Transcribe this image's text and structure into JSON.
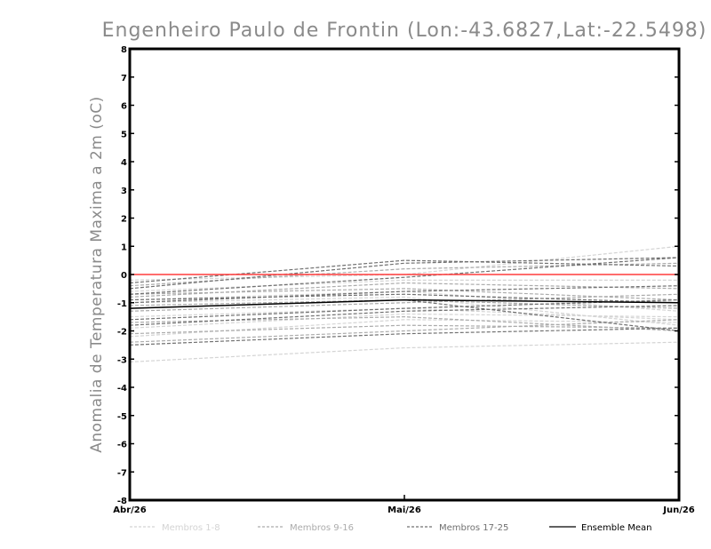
{
  "chart_data": {
    "type": "line",
    "title": "Engenheiro Paulo de Frontin (Lon:-43.6827,Lat:-22.5498)",
    "xlabel": "",
    "ylabel": "Anomalia de Temperatura Maxima a 2m (oC)",
    "categories": [
      "Abr/26",
      "Mai/26",
      "Jun/26"
    ],
    "ylim": [
      -8,
      8
    ],
    "yticks": [
      -8,
      -7,
      -6,
      -5,
      -4,
      -3,
      -2,
      -1,
      0,
      1,
      2,
      3,
      4,
      5,
      6,
      7,
      8
    ],
    "grid": false,
    "legend_position": "bottom",
    "groups": [
      {
        "label": "Membros 1-8",
        "color": "#d4d4d4",
        "dash": true
      },
      {
        "label": "Membros 9-16",
        "color": "#ababab",
        "dash": true
      },
      {
        "label": "Membros 17-25",
        "color": "#707070",
        "dash": true
      },
      {
        "label": "Ensemble Mean",
        "color": "#000000",
        "dash": false
      }
    ],
    "reference_line": {
      "value": 0,
      "color": "#ff3b3b"
    },
    "members": [
      {
        "group": 0,
        "values": [
          -3.1,
          -2.6,
          -2.4
        ]
      },
      {
        "group": 0,
        "values": [
          -2.2,
          -1.6,
          -1.7
        ]
      },
      {
        "group": 0,
        "values": [
          -1.9,
          -1.4,
          -1.5
        ]
      },
      {
        "group": 0,
        "values": [
          -0.9,
          -0.6,
          -1.3
        ]
      },
      {
        "group": 0,
        "values": [
          -0.6,
          -0.2,
          -0.2
        ]
      },
      {
        "group": 0,
        "values": [
          -1.0,
          -0.8,
          -1.8
        ]
      },
      {
        "group": 0,
        "values": [
          -0.2,
          0.0,
          1.0
        ]
      },
      {
        "group": 0,
        "values": [
          -1.5,
          -1.2,
          -1.6
        ]
      },
      {
        "group": 1,
        "values": [
          -2.4,
          -2.0,
          -1.6
        ]
      },
      {
        "group": 1,
        "values": [
          -2.1,
          -1.8,
          -1.9
        ]
      },
      {
        "group": 1,
        "values": [
          -1.7,
          -1.5,
          -2.0
        ]
      },
      {
        "group": 1,
        "values": [
          -1.1,
          -0.9,
          -1.2
        ]
      },
      {
        "group": 1,
        "values": [
          -0.7,
          -0.5,
          -0.9
        ]
      },
      {
        "group": 1,
        "values": [
          -0.4,
          0.2,
          0.4
        ]
      },
      {
        "group": 1,
        "values": [
          -1.3,
          -1.0,
          -0.7
        ]
      },
      {
        "group": 1,
        "values": [
          -0.8,
          -0.3,
          -0.5
        ]
      },
      {
        "group": 2,
        "values": [
          -2.5,
          -2.1,
          -1.9
        ]
      },
      {
        "group": 2,
        "values": [
          -1.8,
          -1.3,
          -1.1
        ]
      },
      {
        "group": 2,
        "values": [
          -1.6,
          -1.2,
          -0.9
        ]
      },
      {
        "group": 2,
        "values": [
          -1.2,
          -0.9,
          -2.0
        ]
      },
      {
        "group": 2,
        "values": [
          -0.9,
          -0.7,
          -1.0
        ]
      },
      {
        "group": 2,
        "values": [
          -0.7,
          -0.1,
          0.6
        ]
      },
      {
        "group": 2,
        "values": [
          -0.5,
          0.4,
          0.6
        ]
      },
      {
        "group": 2,
        "values": [
          -0.3,
          0.5,
          0.3
        ]
      },
      {
        "group": 2,
        "values": [
          -1.0,
          -0.6,
          -0.4
        ]
      }
    ],
    "ensemble_mean": [
      -1.2,
      -0.9,
      -1.0
    ]
  }
}
